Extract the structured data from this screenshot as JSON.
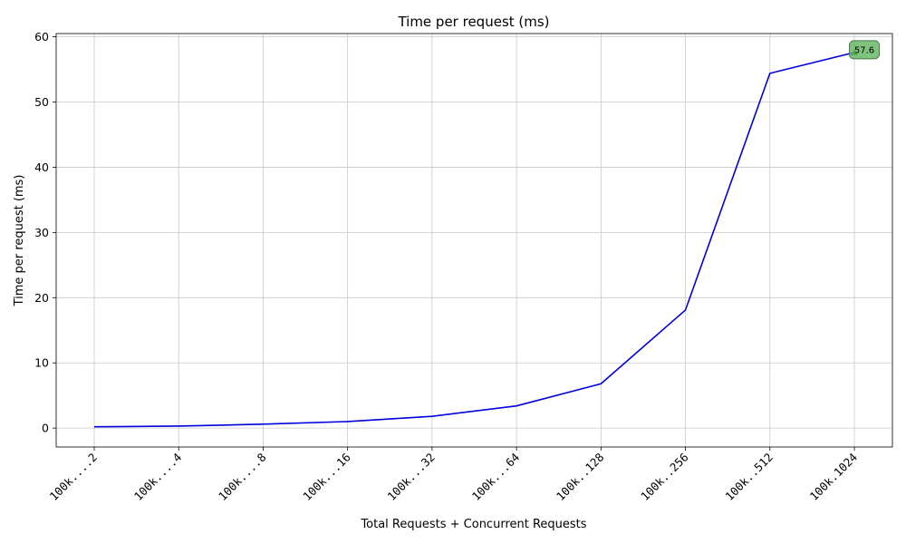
{
  "chart_data": {
    "type": "line",
    "title": "Time per request (ms)",
    "xlabel": "Total Requests + Concurrent Requests",
    "ylabel": "Time per request (ms)",
    "categories": [
      "100k....2",
      "100k....4",
      "100k....8",
      "100k...16",
      "100k...32",
      "100k...64",
      "100k..128",
      "100k..256",
      "100k..512",
      "100k.1024"
    ],
    "series": [
      {
        "values": [
          0.2,
          0.3,
          0.6,
          1.0,
          1.8,
          3.4,
          6.8,
          18.1,
          54.4,
          57.6
        ],
        "color": "#0000dd"
      }
    ],
    "ylim": [
      -2.9,
      60.5
    ],
    "yticks": [
      0,
      10,
      20,
      30,
      40,
      50,
      60
    ],
    "grid": true,
    "annotation": {
      "index": 9,
      "text": "57.6",
      "marker_color": "#1a8a1a"
    }
  }
}
